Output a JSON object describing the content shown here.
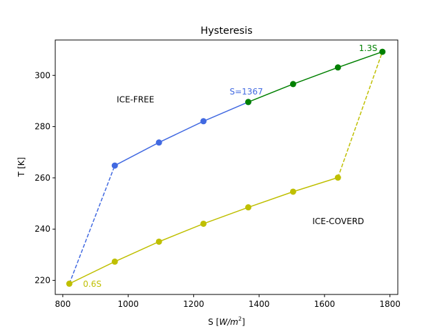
{
  "chart_data": {
    "type": "line",
    "title": "Hysteresis",
    "xlabel_text": "S [",
    "xlabel_unit": "W/m",
    "xlabel_exp": "2",
    "xlabel_close": "]",
    "ylabel": "T [K]",
    "xlim": [
      777,
      1824
    ],
    "ylim": [
      214.5,
      313.8
    ],
    "xticks": [
      800,
      1000,
      1200,
      1400,
      1600,
      1800
    ],
    "yticks": [
      220,
      240,
      260,
      280,
      300
    ],
    "grid": false,
    "series": [
      {
        "color": "#4169e1",
        "x": [
          959,
          1094,
          1230,
          1367
        ],
        "y": [
          264.8,
          273.8,
          282.1,
          289.6
        ],
        "markers": true
      },
      {
        "color": "#4169e1",
        "dashed": true,
        "x": [
          820,
          959
        ],
        "y": [
          218.7,
          264.8
        ],
        "markers": false
      },
      {
        "color": "#008000",
        "x": [
          1367,
          1504,
          1641,
          1777
        ],
        "y": [
          289.6,
          296.6,
          303.1,
          309.2
        ],
        "markers": true
      },
      {
        "color": "#bfbf00",
        "x": [
          820,
          959,
          1094,
          1230,
          1367,
          1504,
          1641
        ],
        "y": [
          218.7,
          227.3,
          235.1,
          242.1,
          248.5,
          254.6,
          260.1
        ],
        "markers": true
      },
      {
        "color": "#bfbf00",
        "dashed": true,
        "x": [
          1641,
          1777
        ],
        "y": [
          260.1,
          309.2
        ],
        "markers": false
      }
    ],
    "annotations": [
      {
        "text": "ICE-FREE",
        "x": 965,
        "y": 289.5,
        "color": "#000000"
      },
      {
        "text": "ICE-COVERD",
        "x": 1563,
        "y": 242.0,
        "color": "#000000"
      },
      {
        "text": "S=1367",
        "x": 1310,
        "y": 292.6,
        "color": "#4169e1"
      },
      {
        "text": "1.3S",
        "x": 1705,
        "y": 309.5,
        "color": "#008000"
      },
      {
        "text": "0.6S",
        "x": 862,
        "y": 217.5,
        "color": "#bfbf00"
      }
    ]
  }
}
